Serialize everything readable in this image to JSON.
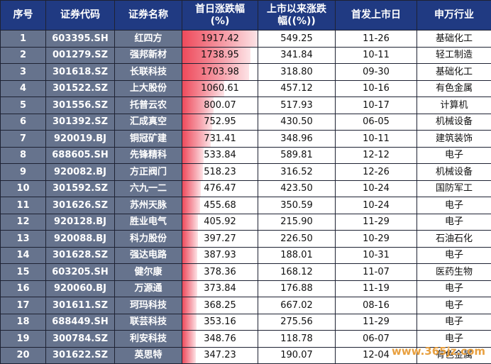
{
  "headers": [
    "序号",
    "证券代码",
    "证券名称",
    "首日涨跌幅\n(%)",
    "上市以来涨跌\n幅((%))",
    "首发上市日",
    "申万行业"
  ],
  "rows": [
    {
      "no": "1",
      "code": "603395.SH",
      "name": "红四方",
      "first_day": "1917.42",
      "since_listing": "549.25",
      "date": "11-26",
      "industry": "基础化工"
    },
    {
      "no": "2",
      "code": "001279.SZ",
      "name": "强邦新材",
      "first_day": "1738.95",
      "since_listing": "341.84",
      "date": "10-11",
      "industry": "轻工制造"
    },
    {
      "no": "3",
      "code": "301618.SZ",
      "name": "长联科技",
      "first_day": "1703.98",
      "since_listing": "318.80",
      "date": "09-30",
      "industry": "基础化工"
    },
    {
      "no": "4",
      "code": "301522.SZ",
      "name": "上大股份",
      "first_day": "1060.61",
      "since_listing": "457.12",
      "date": "10-16",
      "industry": "有色金属"
    },
    {
      "no": "5",
      "code": "301556.SZ",
      "name": "托普云农",
      "first_day": "800.07",
      "since_listing": "517.93",
      "date": "10-17",
      "industry": "计算机"
    },
    {
      "no": "6",
      "code": "301392.SZ",
      "name": "汇成真空",
      "first_day": "752.95",
      "since_listing": "430.50",
      "date": "06-05",
      "industry": "机械设备"
    },
    {
      "no": "7",
      "code": "920019.BJ",
      "name": "铜冠矿建",
      "first_day": "731.41",
      "since_listing": "348.96",
      "date": "10-11",
      "industry": "建筑装饰"
    },
    {
      "no": "8",
      "code": "688605.SH",
      "name": "先锋精科",
      "first_day": "533.84",
      "since_listing": "589.81",
      "date": "12-12",
      "industry": "电子"
    },
    {
      "no": "9",
      "code": "920082.BJ",
      "name": "方正阀门",
      "first_day": "518.23",
      "since_listing": "316.52",
      "date": "12-26",
      "industry": "机械设备"
    },
    {
      "no": "10",
      "code": "301592.SZ",
      "name": "六九一二",
      "first_day": "476.47",
      "since_listing": "423.50",
      "date": "10-24",
      "industry": "国防军工"
    },
    {
      "no": "11",
      "code": "301626.SZ",
      "name": "苏州天脉",
      "first_day": "455.68",
      "since_listing": "350.59",
      "date": "10-24",
      "industry": "电子"
    },
    {
      "no": "12",
      "code": "920128.BJ",
      "name": "胜业电气",
      "first_day": "405.92",
      "since_listing": "215.90",
      "date": "11-29",
      "industry": "电子"
    },
    {
      "no": "13",
      "code": "920088.BJ",
      "name": "科力股份",
      "first_day": "397.27",
      "since_listing": "226.50",
      "date": "10-29",
      "industry": "石油石化"
    },
    {
      "no": "14",
      "code": "301628.SZ",
      "name": "强达电路",
      "first_day": "387.93",
      "since_listing": "188.01",
      "date": "10-31",
      "industry": "电子"
    },
    {
      "no": "15",
      "code": "603205.SH",
      "name": "健尔康",
      "first_day": "378.36",
      "since_listing": "168.12",
      "date": "11-07",
      "industry": "医药生物"
    },
    {
      "no": "16",
      "code": "920060.BJ",
      "name": "万源通",
      "first_day": "373.84",
      "since_listing": "176.88",
      "date": "11-19",
      "industry": "电子"
    },
    {
      "no": "17",
      "code": "301611.SZ",
      "name": "珂玛科技",
      "first_day": "368.25",
      "since_listing": "667.02",
      "date": "08-16",
      "industry": "电子"
    },
    {
      "no": "18",
      "code": "688449.SH",
      "name": "联芸科技",
      "first_day": "353.16",
      "since_listing": "275.56",
      "date": "11-29",
      "industry": "电子"
    },
    {
      "no": "19",
      "code": "300784.SZ",
      "name": "利安科技",
      "first_day": "348.76",
      "since_listing": "118.78",
      "date": "06-07",
      "industry": "电子"
    },
    {
      "no": "20",
      "code": "301622.SZ",
      "name": "英思特",
      "first_day": "347.23",
      "since_listing": "190.07",
      "date": "12-04",
      "industry": "有色金属"
    }
  ],
  "colors": {
    "header_bg": "#203a82",
    "dark_col_bg": "#66738d",
    "bar_fill": "#ee4a5b"
  },
  "watermark": "www.365jz.com"
}
